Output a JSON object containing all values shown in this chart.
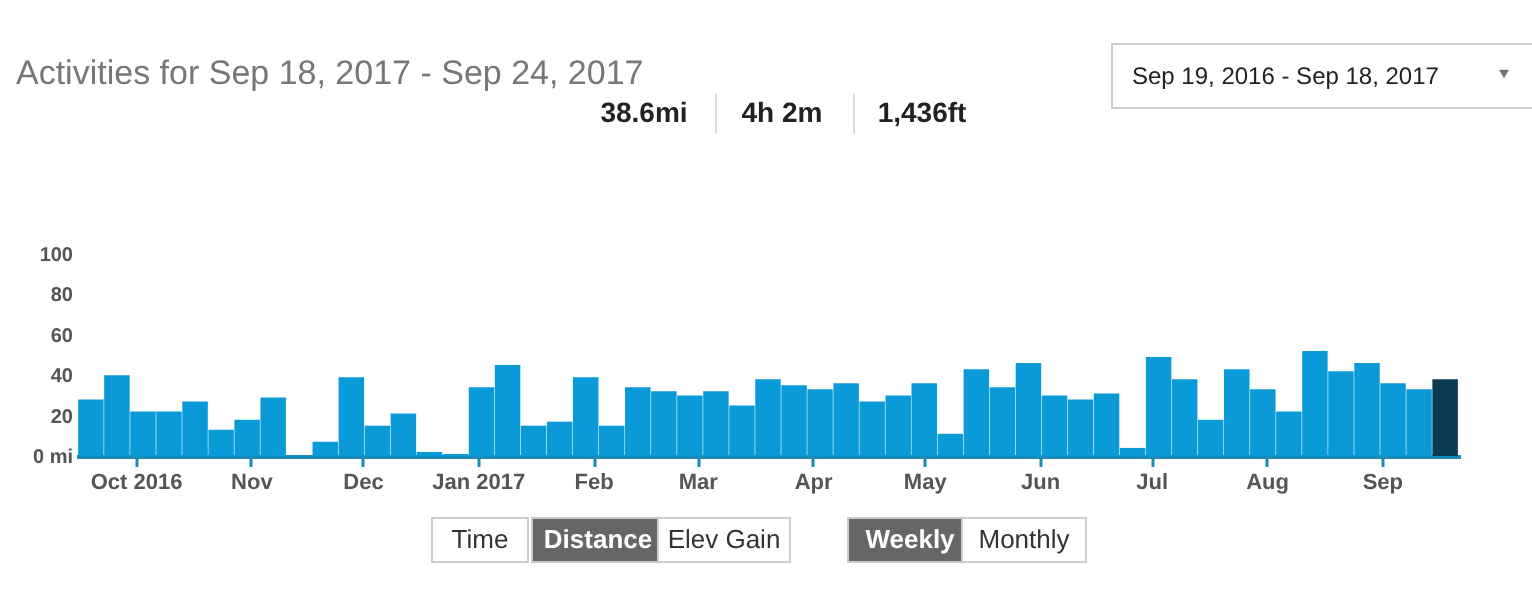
{
  "chart_data": {
    "type": "bar",
    "title": "Activities for Sep 18, 2017 - Sep 24, 2017",
    "x": [
      "2016-09-19",
      "2016-09-26",
      "2016-10-03",
      "2016-10-10",
      "2016-10-17",
      "2016-10-24",
      "2016-10-31",
      "2016-11-07",
      "2016-11-14",
      "2016-11-21",
      "2016-11-28",
      "2016-12-05",
      "2016-12-12",
      "2016-12-19",
      "2016-12-26",
      "2017-01-02",
      "2017-01-09",
      "2017-01-16",
      "2017-01-23",
      "2017-01-30",
      "2017-02-06",
      "2017-02-13",
      "2017-02-20",
      "2017-02-27",
      "2017-03-06",
      "2017-03-13",
      "2017-03-20",
      "2017-03-27",
      "2017-04-03",
      "2017-04-10",
      "2017-04-17",
      "2017-04-24",
      "2017-05-01",
      "2017-05-08",
      "2017-05-15",
      "2017-05-22",
      "2017-05-29",
      "2017-06-05",
      "2017-06-12",
      "2017-06-19",
      "2017-06-26",
      "2017-07-03",
      "2017-07-10",
      "2017-07-17",
      "2017-07-24",
      "2017-07-31",
      "2017-08-07",
      "2017-08-14",
      "2017-08-21",
      "2017-08-28",
      "2017-09-04",
      "2017-09-11",
      "2017-09-18"
    ],
    "values": [
      28,
      40,
      22,
      22,
      27,
      13,
      18,
      29,
      0,
      7,
      39,
      15,
      21,
      2,
      1,
      34,
      45,
      15,
      17,
      39,
      15,
      34,
      32,
      30,
      32,
      25,
      38,
      35,
      33,
      36,
      27,
      30,
      36,
      11,
      43,
      34,
      46,
      30,
      28,
      31,
      4,
      49,
      38,
      18,
      43,
      33,
      22,
      52,
      42,
      46,
      36,
      33,
      38
    ],
    "colors": [
      "#0a9ad8",
      "#0a9ad8",
      "#0a9ad8",
      "#0a9ad8",
      "#0a9ad8",
      "#0a9ad8",
      "#0a9ad8",
      "#0a9ad8",
      "#0a9ad8",
      "#0a9ad8",
      "#0a9ad8",
      "#0a9ad8",
      "#0a9ad8",
      "#0a9ad8",
      "#0a9ad8",
      "#0a9ad8",
      "#0a9ad8",
      "#0a9ad8",
      "#0a9ad8",
      "#0a9ad8",
      "#0a9ad8",
      "#0a9ad8",
      "#0a9ad8",
      "#0a9ad8",
      "#0a9ad8",
      "#0a9ad8",
      "#0a9ad8",
      "#0a9ad8",
      "#0a9ad8",
      "#0a9ad8",
      "#0a9ad8",
      "#0a9ad8",
      "#0a9ad8",
      "#0a9ad8",
      "#0a9ad8",
      "#0a9ad8",
      "#0a9ad8",
      "#0a9ad8",
      "#0a9ad8",
      "#0a9ad8",
      "#0a9ad8",
      "#0a9ad8",
      "#0a9ad8",
      "#0a9ad8",
      "#0a9ad8",
      "#0a9ad8",
      "#0a9ad8",
      "#0a9ad8",
      "#0a9ad8",
      "#0a9ad8",
      "#0a9ad8",
      "#0a9ad8",
      "#0c3a55"
    ],
    "xlim": [
      "2016-09-15",
      "2017-09-22"
    ],
    "xticks": [
      {
        "value": "2016-10-01",
        "label": "Oct 2016"
      },
      {
        "value": "2016-11-01",
        "label": "Nov"
      },
      {
        "value": "2016-12-01",
        "label": "Dec"
      },
      {
        "value": "2017-01-01",
        "label": "Jan 2017"
      },
      {
        "value": "2017-02-01",
        "label": "Feb"
      },
      {
        "value": "2017-03-01",
        "label": "Mar"
      },
      {
        "value": "2017-04-01",
        "label": "Apr"
      },
      {
        "value": "2017-05-01",
        "label": "May"
      },
      {
        "value": "2017-06-01",
        "label": "Jun"
      },
      {
        "value": "2017-07-01",
        "label": "Jul"
      },
      {
        "value": "2017-08-01",
        "label": "Aug"
      },
      {
        "value": "2017-09-01",
        "label": "Sep"
      }
    ],
    "ylim": [
      0,
      100
    ],
    "yticks": [
      {
        "value": 0,
        "label": "0 mi"
      },
      20,
      40,
      60,
      80,
      100
    ],
    "grid": false,
    "annotations": [
      "Sep 19, 2016 - Sep 18, 2017",
      "38.6mi",
      "4h 2m",
      "1,436ft",
      "Time",
      "Distance",
      "Elev Gain",
      "Weekly",
      "Monthly"
    ]
  }
}
